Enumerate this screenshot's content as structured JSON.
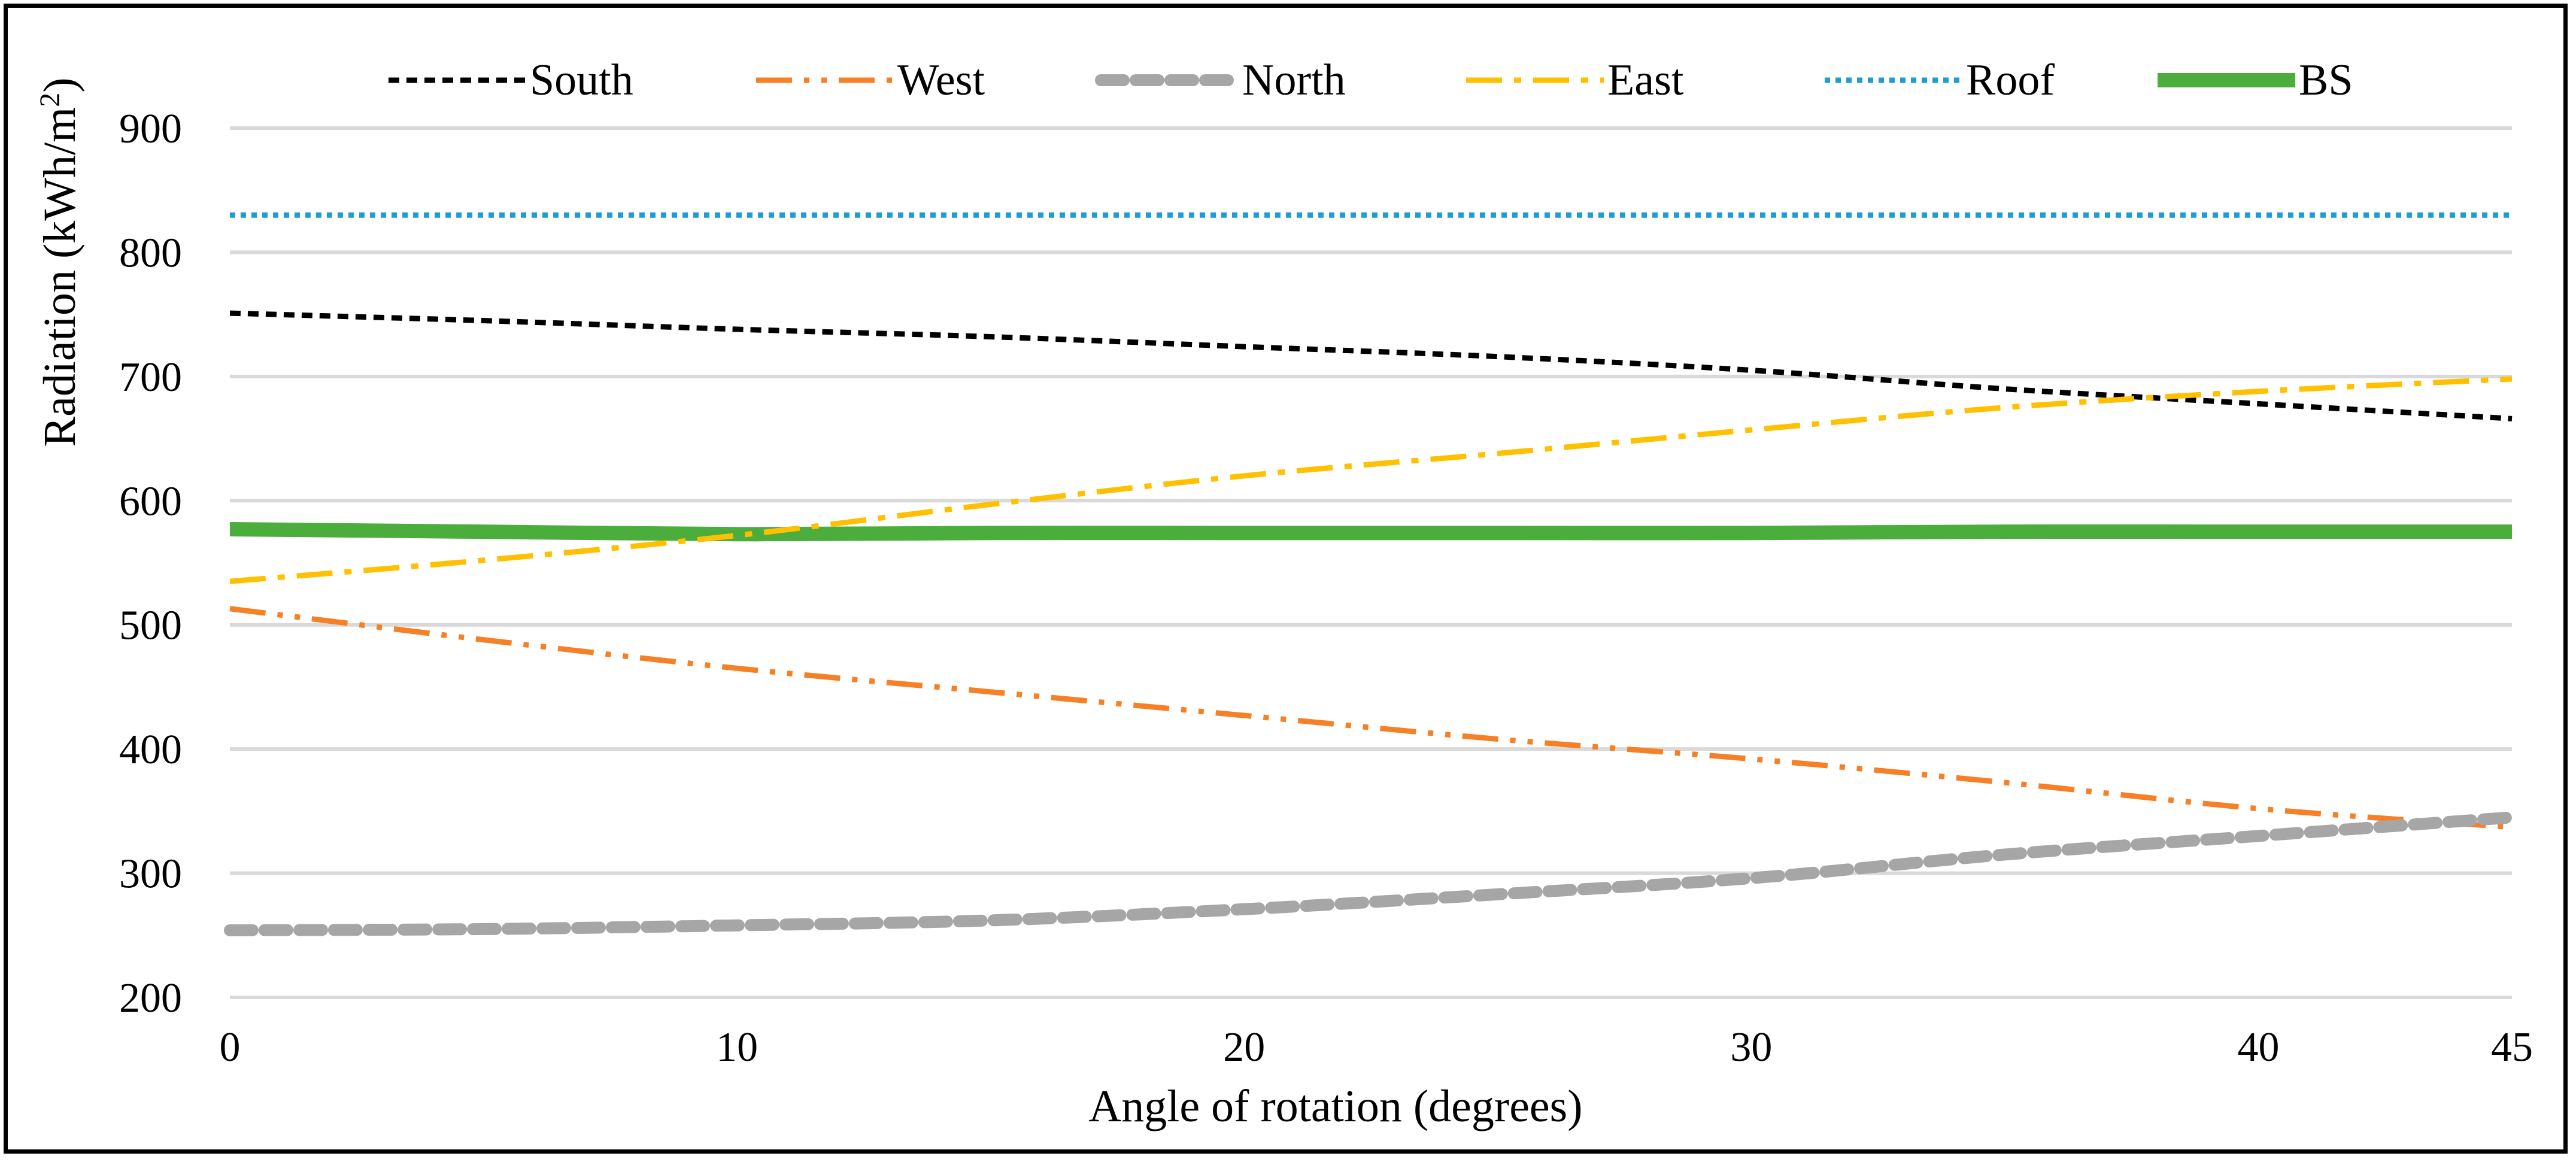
{
  "chart_data": {
    "type": "line",
    "title": "",
    "xlabel": "Angle of rotation (degrees)",
    "ylabel_main": "Radiation (kWh/m",
    "ylabel_sup": "2",
    "ylabel_close": ")",
    "xlim": [
      0,
      45
    ],
    "ylim": [
      200,
      900
    ],
    "x_ticks": [
      0,
      10,
      20,
      30,
      40,
      45
    ],
    "x_tick_labels": [
      "0",
      "10",
      "20",
      "30",
      "40",
      "45"
    ],
    "y_ticks": [
      200,
      300,
      400,
      500,
      600,
      700,
      800,
      900
    ],
    "y_tick_labels": [
      "200",
      "300",
      "400",
      "500",
      "600",
      "700",
      "800",
      "900"
    ],
    "grid": true,
    "legend_position": "top",
    "x": [
      0,
      5,
      10,
      15,
      20,
      25,
      30,
      35,
      40,
      45
    ],
    "series": [
      {
        "name": "South",
        "color": "#000000",
        "dash": "short-dash",
        "values": [
          751,
          745,
          738,
          732,
          724,
          716,
          705,
          690,
          678,
          666
        ]
      },
      {
        "name": "West",
        "color": "#F58025",
        "dash": "long-dash-dot-dot",
        "values": [
          513,
          488,
          465,
          446,
          427,
          408,
          392,
          373,
          352,
          337
        ]
      },
      {
        "name": "North",
        "color": "#A6A6A6",
        "dash": "dash",
        "values": [
          254,
          255,
          258,
          262,
          271,
          283,
          296,
          315,
          330,
          345
        ]
      },
      {
        "name": "East",
        "color": "#FFC000",
        "dash": "long-dash-dot",
        "values": [
          535,
          552,
          572,
          597,
          620,
          638,
          657,
          675,
          688,
          698
        ]
      },
      {
        "name": "Roof",
        "color": "#1F9BD7",
        "dash": "dot",
        "values": [
          830,
          830,
          830,
          830,
          830,
          830,
          830,
          830,
          830,
          830
        ]
      },
      {
        "name": "BS",
        "color": "#4BAE3C",
        "dash": "solid",
        "values": [
          577,
          575,
          573,
          574,
          574,
          574,
          574,
          575,
          575,
          575
        ]
      }
    ]
  }
}
